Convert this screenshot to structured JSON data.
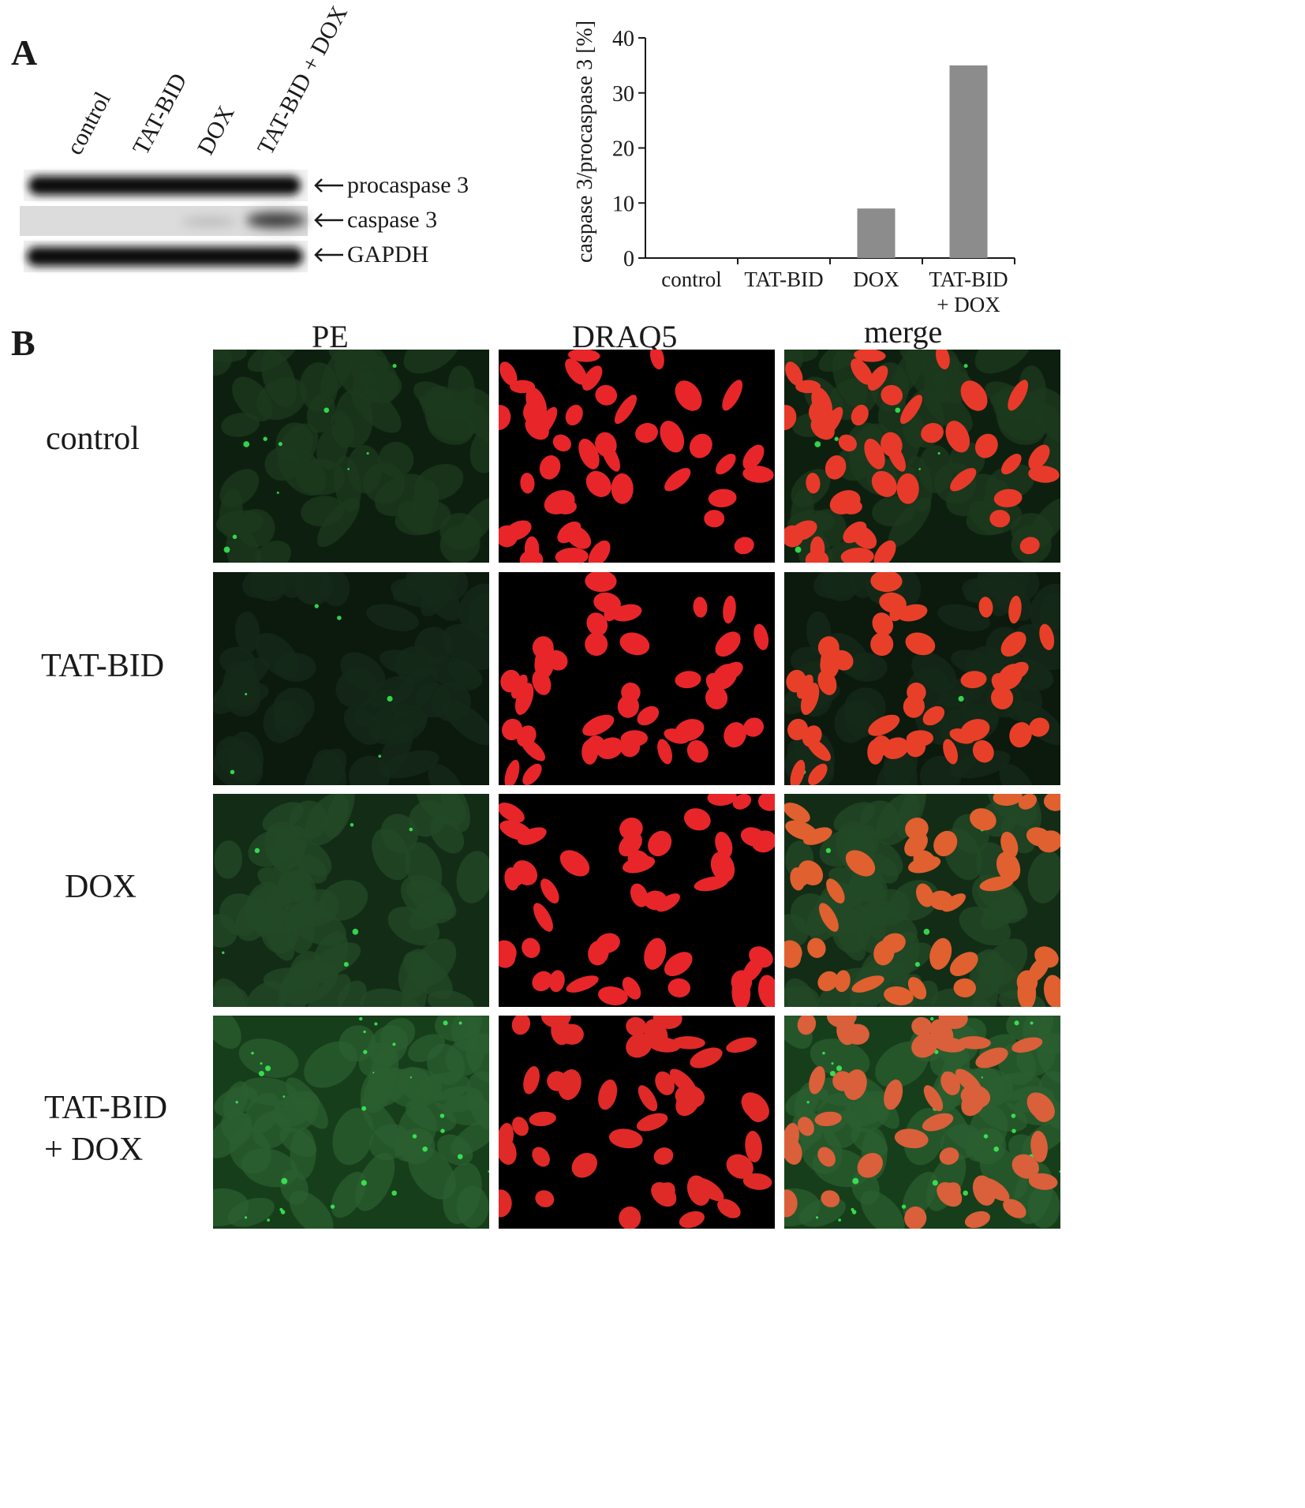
{
  "panelA": {
    "letter": "A",
    "lanes": [
      "control",
      "TAT-BID",
      "DOX",
      "TAT-BID + DOX"
    ],
    "bands": [
      "procaspase 3",
      "caspase 3",
      "GAPDH"
    ]
  },
  "chart_data": {
    "type": "bar",
    "categories": [
      "control",
      "TAT-BID",
      "DOX",
      "TAT-BID + DOX"
    ],
    "category_labels": [
      [
        "control"
      ],
      [
        "TAT-BID"
      ],
      [
        "DOX"
      ],
      [
        "TAT-BID",
        "+ DOX"
      ]
    ],
    "values": [
      0,
      0,
      9,
      35
    ],
    "ylabel": "caspase 3/procaspase 3 [%]",
    "xlabel": "",
    "ylim": [
      0,
      40
    ],
    "yticks": [
      0,
      10,
      20,
      30,
      40
    ],
    "grid": false,
    "bar_color": "#8c8c8c"
  },
  "panelB": {
    "letter": "B",
    "columns": [
      "PE",
      "DRAQ5",
      "merge"
    ],
    "rows": [
      [
        "control"
      ],
      [
        "TAT-BID"
      ],
      [
        "DOX"
      ],
      [
        "TAT-BID",
        "+ DOX"
      ]
    ]
  }
}
